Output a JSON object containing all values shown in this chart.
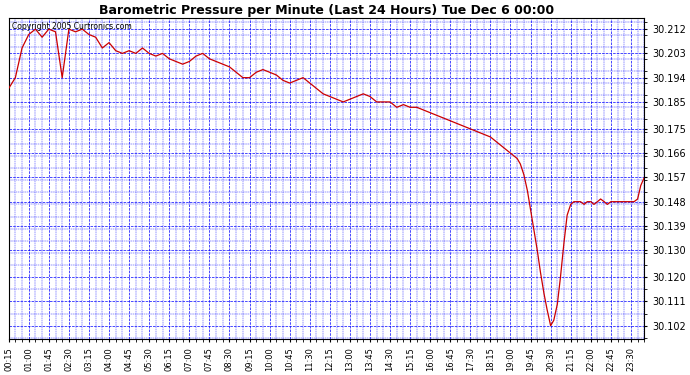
{
  "title": "Barometric Pressure per Minute (Last 24 Hours) Tue Dec 6 00:00",
  "copyright": "Copyright 2005 Curtronics.com",
  "background_color": "#ffffff",
  "plot_bg_color": "#ffffff",
  "grid_color": "#0000ff",
  "line_color": "#cc0000",
  "yticks": [
    30.102,
    30.111,
    30.12,
    30.13,
    30.139,
    30.148,
    30.157,
    30.166,
    30.175,
    30.185,
    30.194,
    30.203,
    30.212
  ],
  "ylim": [
    30.097,
    30.216
  ],
  "xtick_labels": [
    "00:15",
    "01:00",
    "01:45",
    "02:30",
    "03:15",
    "04:00",
    "04:45",
    "05:30",
    "06:15",
    "07:00",
    "07:45",
    "08:30",
    "09:15",
    "10:00",
    "10:45",
    "11:30",
    "12:15",
    "13:00",
    "13:45",
    "14:30",
    "15:15",
    "16:00",
    "16:45",
    "17:30",
    "18:15",
    "19:00",
    "19:45",
    "20:30",
    "21:15",
    "22:00",
    "22:45",
    "23:30"
  ],
  "pressure_data": [
    [
      15,
      30.19
    ],
    [
      30,
      30.194
    ],
    [
      45,
      30.205
    ],
    [
      60,
      30.21
    ],
    [
      75,
      30.212
    ],
    [
      90,
      30.209
    ],
    [
      105,
      30.212
    ],
    [
      120,
      30.211
    ],
    [
      135,
      30.194
    ],
    [
      150,
      30.212
    ],
    [
      165,
      30.211
    ],
    [
      180,
      30.212
    ],
    [
      195,
      30.21
    ],
    [
      210,
      30.209
    ],
    [
      225,
      30.205
    ],
    [
      240,
      30.207
    ],
    [
      255,
      30.204
    ],
    [
      270,
      30.203
    ],
    [
      285,
      30.204
    ],
    [
      300,
      30.203
    ],
    [
      315,
      30.205
    ],
    [
      330,
      30.203
    ],
    [
      345,
      30.202
    ],
    [
      360,
      30.203
    ],
    [
      375,
      30.201
    ],
    [
      390,
      30.2
    ],
    [
      405,
      30.199
    ],
    [
      420,
      30.2
    ],
    [
      435,
      30.202
    ],
    [
      450,
      30.203
    ],
    [
      465,
      30.201
    ],
    [
      480,
      30.2
    ],
    [
      495,
      30.199
    ],
    [
      510,
      30.198
    ],
    [
      525,
      30.196
    ],
    [
      540,
      30.194
    ],
    [
      555,
      30.194
    ],
    [
      570,
      30.196
    ],
    [
      585,
      30.197
    ],
    [
      600,
      30.196
    ],
    [
      615,
      30.195
    ],
    [
      630,
      30.193
    ],
    [
      645,
      30.192
    ],
    [
      660,
      30.193
    ],
    [
      675,
      30.194
    ],
    [
      690,
      30.192
    ],
    [
      705,
      30.19
    ],
    [
      720,
      30.188
    ],
    [
      735,
      30.187
    ],
    [
      750,
      30.186
    ],
    [
      765,
      30.185
    ],
    [
      780,
      30.186
    ],
    [
      795,
      30.187
    ],
    [
      810,
      30.188
    ],
    [
      825,
      30.187
    ],
    [
      840,
      30.185
    ],
    [
      855,
      30.185
    ],
    [
      870,
      30.185
    ],
    [
      885,
      30.183
    ],
    [
      900,
      30.184
    ],
    [
      915,
      30.183
    ],
    [
      930,
      30.183
    ],
    [
      945,
      30.182
    ],
    [
      960,
      30.181
    ],
    [
      975,
      30.18
    ],
    [
      990,
      30.179
    ],
    [
      1005,
      30.178
    ],
    [
      1020,
      30.177
    ],
    [
      1035,
      30.176
    ],
    [
      1050,
      30.175
    ],
    [
      1065,
      30.174
    ],
    [
      1080,
      30.173
    ],
    [
      1095,
      30.172
    ],
    [
      1110,
      30.17
    ],
    [
      1125,
      30.168
    ],
    [
      1140,
      30.166
    ],
    [
      1155,
      30.164
    ],
    [
      1162,
      30.162
    ],
    [
      1170,
      30.158
    ],
    [
      1178,
      30.152
    ],
    [
      1185,
      30.145
    ],
    [
      1192,
      30.138
    ],
    [
      1200,
      30.13
    ],
    [
      1207,
      30.122
    ],
    [
      1215,
      30.114
    ],
    [
      1222,
      30.108
    ],
    [
      1230,
      30.102
    ],
    [
      1237,
      30.104
    ],
    [
      1245,
      30.11
    ],
    [
      1252,
      30.12
    ],
    [
      1260,
      30.133
    ],
    [
      1267,
      30.143
    ],
    [
      1275,
      30.147
    ],
    [
      1282,
      30.148
    ],
    [
      1290,
      30.148
    ],
    [
      1297,
      30.148
    ],
    [
      1305,
      30.147
    ],
    [
      1312,
      30.148
    ],
    [
      1320,
      30.148
    ],
    [
      1327,
      30.147
    ],
    [
      1335,
      30.148
    ],
    [
      1342,
      30.149
    ],
    [
      1350,
      30.148
    ],
    [
      1357,
      30.147
    ],
    [
      1365,
      30.148
    ],
    [
      1372,
      30.148
    ],
    [
      1380,
      30.148
    ],
    [
      1387,
      30.148
    ],
    [
      1395,
      30.148
    ],
    [
      1402,
      30.148
    ],
    [
      1410,
      30.148
    ],
    [
      1417,
      30.148
    ],
    [
      1425,
      30.149
    ],
    [
      1432,
      30.154
    ],
    [
      1440,
      30.157
    ]
  ]
}
